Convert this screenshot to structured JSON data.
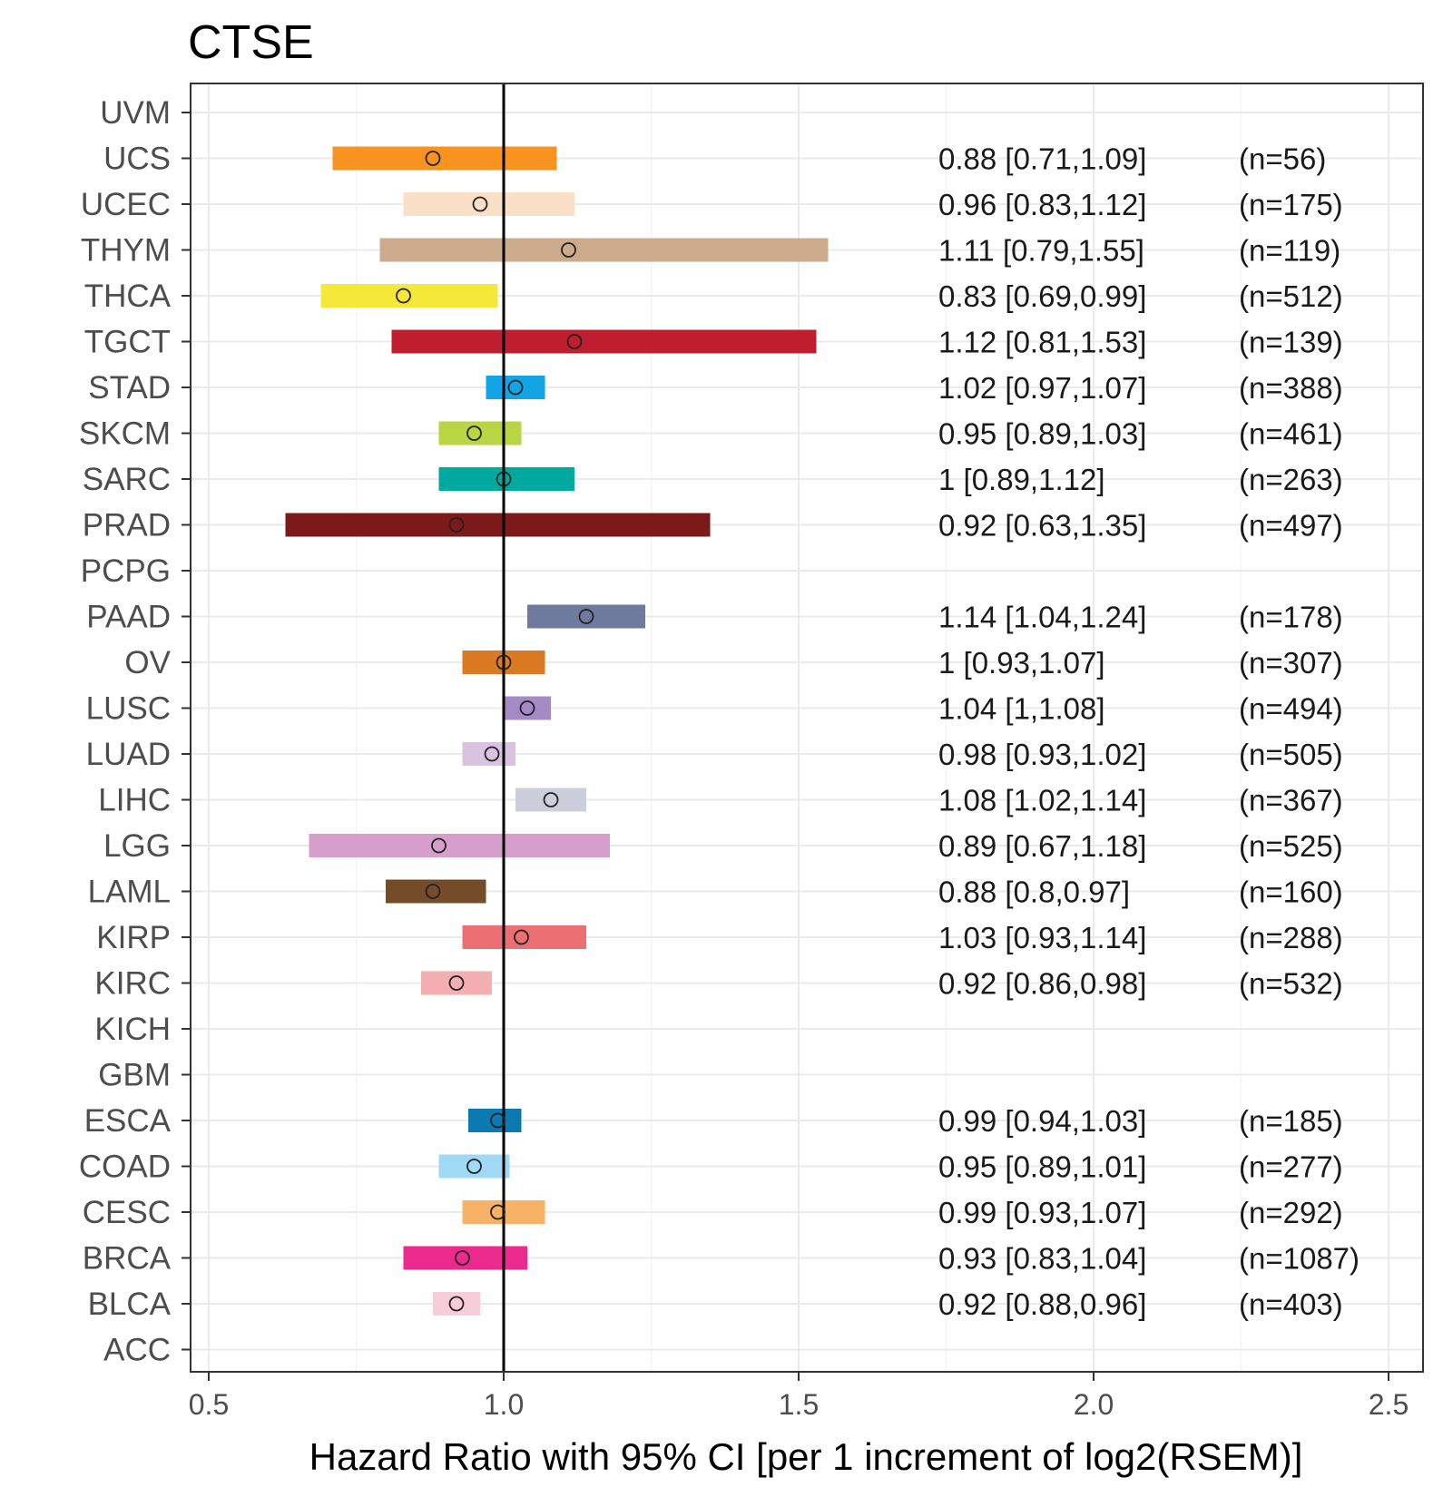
{
  "chart_data": {
    "type": "forest",
    "title": "CTSE",
    "xlabel": "Hazard Ratio with 95% CI [per 1 increment of log2(RSEM)]",
    "xlim": [
      0.5,
      2.5
    ],
    "xticks": [
      0.5,
      1.0,
      1.5,
      2.0,
      2.5
    ],
    "xtick_labels": [
      "0.5",
      "1.0",
      "1.5",
      "2.0",
      "2.5"
    ],
    "reference_line": 1.0,
    "grid": true,
    "rows": [
      {
        "label": "UVM"
      },
      {
        "label": "UCS",
        "hr": 0.88,
        "lower": 0.71,
        "upper": 1.09,
        "text": "0.88 [0.71,1.09]",
        "n": "(n=56)",
        "color": "#F7931E"
      },
      {
        "label": "UCEC",
        "hr": 0.96,
        "lower": 0.83,
        "upper": 1.12,
        "text": "0.96 [0.83,1.12]",
        "n": "(n=175)",
        "color": "#FBE0C8"
      },
      {
        "label": "THYM",
        "hr": 1.11,
        "lower": 0.79,
        "upper": 1.55,
        "text": "1.11 [0.79,1.55]",
        "n": "(n=119)",
        "color": "#CCAA8C"
      },
      {
        "label": "THCA",
        "hr": 0.83,
        "lower": 0.69,
        "upper": 0.99,
        "text": "0.83 [0.69,0.99]",
        "n": "(n=512)",
        "color": "#F5E838"
      },
      {
        "label": "TGCT",
        "hr": 1.12,
        "lower": 0.81,
        "upper": 1.53,
        "text": "1.12 [0.81,1.53]",
        "n": "(n=139)",
        "color": "#BE1E2D"
      },
      {
        "label": "STAD",
        "hr": 1.02,
        "lower": 0.97,
        "upper": 1.07,
        "text": "1.02 [0.97,1.07]",
        "n": "(n=388)",
        "color": "#12A5E5"
      },
      {
        "label": "SKCM",
        "hr": 0.95,
        "lower": 0.89,
        "upper": 1.03,
        "text": "0.95 [0.89,1.03]",
        "n": "(n=461)",
        "color": "#B9D542"
      },
      {
        "label": "SARC",
        "hr": 1,
        "lower": 0.89,
        "upper": 1.12,
        "text": "1 [0.89,1.12]",
        "n": "(n=263)",
        "color": "#00A99D"
      },
      {
        "label": "PRAD",
        "hr": 0.92,
        "lower": 0.63,
        "upper": 1.35,
        "text": "0.92 [0.63,1.35]",
        "n": "(n=497)",
        "color": "#7C1A1A"
      },
      {
        "label": "PCPG"
      },
      {
        "label": "PAAD",
        "hr": 1.14,
        "lower": 1.04,
        "upper": 1.24,
        "text": "1.14 [1.04,1.24]",
        "n": "(n=178)",
        "color": "#6E7B9F"
      },
      {
        "label": "OV",
        "hr": 1,
        "lower": 0.93,
        "upper": 1.07,
        "text": "1 [0.93,1.07]",
        "n": "(n=307)",
        "color": "#DA7B23"
      },
      {
        "label": "LUSC",
        "hr": 1.04,
        "lower": 1,
        "upper": 1.08,
        "text": "1.04 [1,1.08]",
        "n": "(n=494)",
        "color": "#A58BC5"
      },
      {
        "label": "LUAD",
        "hr": 0.98,
        "lower": 0.93,
        "upper": 1.02,
        "text": "0.98 [0.93,1.02]",
        "n": "(n=505)",
        "color": "#D9C3E0"
      },
      {
        "label": "LIHC",
        "hr": 1.08,
        "lower": 1.02,
        "upper": 1.14,
        "text": "1.08 [1.02,1.14]",
        "n": "(n=367)",
        "color": "#CCCEDC"
      },
      {
        "label": "LGG",
        "hr": 0.89,
        "lower": 0.67,
        "upper": 1.18,
        "text": "0.89 [0.67,1.18]",
        "n": "(n=525)",
        "color": "#D59ECB"
      },
      {
        "label": "LAML",
        "hr": 0.88,
        "lower": 0.8,
        "upper": 0.97,
        "text": "0.88 [0.8,0.97]",
        "n": "(n=160)",
        "color": "#754C29"
      },
      {
        "label": "KIRP",
        "hr": 1.03,
        "lower": 0.93,
        "upper": 1.14,
        "text": "1.03 [0.93,1.14]",
        "n": "(n=288)",
        "color": "#EC6F73"
      },
      {
        "label": "KIRC",
        "hr": 0.92,
        "lower": 0.86,
        "upper": 0.98,
        "text": "0.92 [0.86,0.98]",
        "n": "(n=532)",
        "color": "#F5AEB1"
      },
      {
        "label": "KICH"
      },
      {
        "label": "GBM"
      },
      {
        "label": "ESCA",
        "hr": 0.99,
        "lower": 0.94,
        "upper": 1.03,
        "text": "0.99 [0.94,1.03]",
        "n": "(n=185)",
        "color": "#0A7AB0"
      },
      {
        "label": "COAD",
        "hr": 0.95,
        "lower": 0.89,
        "upper": 1.01,
        "text": "0.95 [0.89,1.01]",
        "n": "(n=277)",
        "color": "#9FD9F4"
      },
      {
        "label": "CESC",
        "hr": 0.99,
        "lower": 0.93,
        "upper": 1.07,
        "text": "0.99 [0.93,1.07]",
        "n": "(n=292)",
        "color": "#F6B365"
      },
      {
        "label": "BRCA",
        "hr": 0.93,
        "lower": 0.83,
        "upper": 1.04,
        "text": "0.93 [0.83,1.04]",
        "n": "(n=1087)",
        "color": "#EC2A8E"
      },
      {
        "label": "BLCA",
        "hr": 0.92,
        "lower": 0.88,
        "upper": 0.96,
        "text": "0.92 [0.88,0.96]",
        "n": "(n=403)",
        "color": "#F9CDD8"
      },
      {
        "label": "ACC"
      }
    ]
  }
}
